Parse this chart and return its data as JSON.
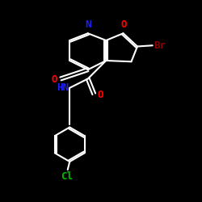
{
  "bg_color": "#000000",
  "C_color": "#FFFFFF",
  "N_color": "#1F1FFF",
  "O_color": "#FF0000",
  "Br_color": "#8B0000",
  "Cl_color": "#00BB00",
  "line_width": 1.5,
  "font_size": 9,
  "xlim": [
    0,
    10
  ],
  "ylim": [
    0,
    10
  ]
}
